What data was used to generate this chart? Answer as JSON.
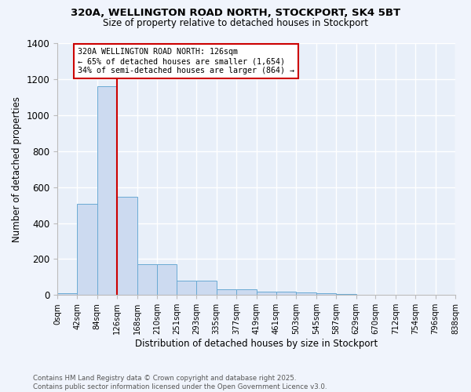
{
  "title_line1": "320A, WELLINGTON ROAD NORTH, STOCKPORT, SK4 5BT",
  "title_line2": "Size of property relative to detached houses in Stockport",
  "xlabel": "Distribution of detached houses by size in Stockport",
  "ylabel": "Number of detached properties",
  "bar_color": "#ccdaf0",
  "bar_edge_color": "#6aaad4",
  "background_color": "#e8eff9",
  "grid_color": "#ffffff",
  "annotation_box_text": "320A WELLINGTON ROAD NORTH: 126sqm\n← 65% of detached houses are smaller (1,654)\n34% of semi-detached houses are larger (864) →",
  "red_line_x": 126,
  "bins": [
    0,
    42,
    84,
    126,
    168,
    210,
    251,
    293,
    335,
    377,
    419,
    461,
    503,
    545,
    587,
    629,
    670,
    712,
    754,
    796,
    838
  ],
  "bar_heights": [
    10,
    505,
    1160,
    548,
    170,
    170,
    80,
    80,
    30,
    30,
    20,
    20,
    13,
    10,
    5,
    0,
    0,
    0,
    0,
    0
  ],
  "ylim": [
    0,
    1400
  ],
  "yticks": [
    0,
    200,
    400,
    600,
    800,
    1000,
    1200,
    1400
  ],
  "footer_text": "Contains HM Land Registry data © Crown copyright and database right 2025.\nContains public sector information licensed under the Open Government Licence v3.0.",
  "annotation_box_color": "#ffffff",
  "annotation_box_edge_color": "#cc0000",
  "red_line_color": "#cc0000",
  "fig_bg_color": "#f0f4fc"
}
